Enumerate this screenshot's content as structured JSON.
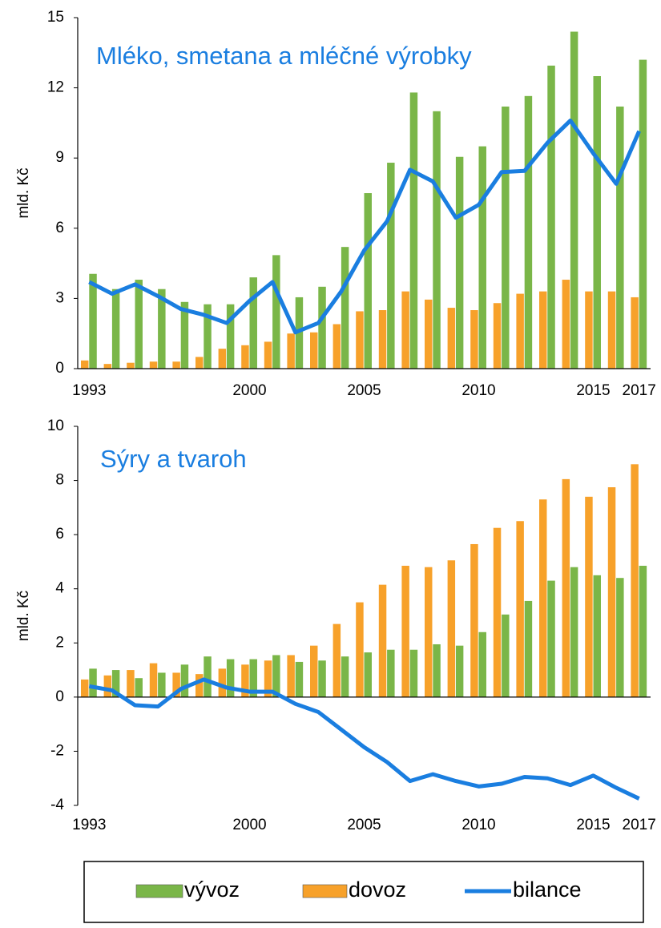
{
  "chart_data": [
    {
      "type": "bar-line",
      "title": "Mléko, smetana a mléčné výrobky",
      "y_label": "mld. Kč",
      "categories": [
        "1993",
        null,
        null,
        null,
        null,
        null,
        null,
        "2000",
        null,
        null,
        null,
        null,
        "2005",
        null,
        null,
        null,
        null,
        "2010",
        null,
        null,
        null,
        null,
        "2015",
        null,
        "2017"
      ],
      "series": [
        {
          "name": "vývoz",
          "kind": "bar",
          "color": "#7ab648",
          "values": [
            4.05,
            3.4,
            3.8,
            3.4,
            2.85,
            2.75,
            2.75,
            3.9,
            4.85,
            3.05,
            3.5,
            5.2,
            7.5,
            8.8,
            11.8,
            11.0,
            9.05,
            9.5,
            11.2,
            11.65,
            12.95,
            14.4,
            12.5,
            11.2,
            13.2
          ]
        },
        {
          "name": "dovoz",
          "kind": "bar",
          "color": "#f7a12a",
          "values": [
            0.35,
            0.2,
            0.25,
            0.3,
            0.3,
            0.5,
            0.85,
            1.0,
            1.15,
            1.5,
            1.55,
            1.9,
            2.45,
            2.5,
            3.3,
            2.95,
            2.6,
            2.5,
            2.8,
            3.2,
            3.3,
            3.8,
            3.3,
            3.3,
            3.05
          ]
        },
        {
          "name": "bilance",
          "kind": "line",
          "color": "#1a7ee0",
          "values": [
            3.7,
            3.2,
            3.6,
            3.1,
            2.55,
            2.3,
            1.95,
            2.9,
            3.7,
            1.55,
            1.95,
            3.3,
            5.05,
            6.3,
            8.5,
            8.0,
            6.45,
            7.0,
            8.4,
            8.45,
            9.65,
            10.6,
            9.2,
            7.9,
            10.15
          ]
        }
      ],
      "ylim": [
        0,
        15
      ],
      "yticks": [
        0,
        3,
        6,
        9,
        12,
        15
      ]
    },
    {
      "type": "bar-line",
      "title": "Sýry a tvaroh",
      "y_label": "mld. Kč",
      "categories": [
        "1993",
        null,
        null,
        null,
        null,
        null,
        null,
        "2000",
        null,
        null,
        null,
        null,
        "2005",
        null,
        null,
        null,
        null,
        "2010",
        null,
        null,
        null,
        null,
        "2015",
        null,
        "2017"
      ],
      "series": [
        {
          "name": "vývoz",
          "kind": "bar",
          "color": "#7ab648",
          "values": [
            1.05,
            1.0,
            0.7,
            0.9,
            1.2,
            1.5,
            1.4,
            1.4,
            1.55,
            1.3,
            1.35,
            1.5,
            1.65,
            1.75,
            1.75,
            1.95,
            1.9,
            2.4,
            3.05,
            3.55,
            4.3,
            4.8,
            4.5,
            4.4,
            4.85
          ]
        },
        {
          "name": "dovoz",
          "kind": "bar",
          "color": "#f7a12a",
          "values": [
            0.65,
            0.8,
            1.0,
            1.25,
            0.9,
            0.85,
            1.05,
            1.2,
            1.35,
            1.55,
            1.9,
            2.7,
            3.5,
            4.15,
            4.85,
            4.8,
            5.05,
            5.65,
            6.25,
            6.5,
            7.3,
            8.05,
            7.4,
            7.75,
            8.6
          ]
        },
        {
          "name": "bilance",
          "kind": "line",
          "color": "#1a7ee0",
          "values": [
            0.4,
            0.25,
            -0.3,
            -0.35,
            0.3,
            0.65,
            0.35,
            0.2,
            0.2,
            -0.25,
            -0.55,
            -1.2,
            -1.85,
            -2.4,
            -3.1,
            -2.85,
            -3.1,
            -3.3,
            -3.2,
            -2.95,
            -3.0,
            -3.25,
            -2.9,
            -3.35,
            -3.75
          ]
        }
      ],
      "ylim": [
        -4,
        10
      ],
      "yticks": [
        -4,
        -2,
        0,
        2,
        4,
        6,
        8,
        10
      ]
    }
  ]
}
